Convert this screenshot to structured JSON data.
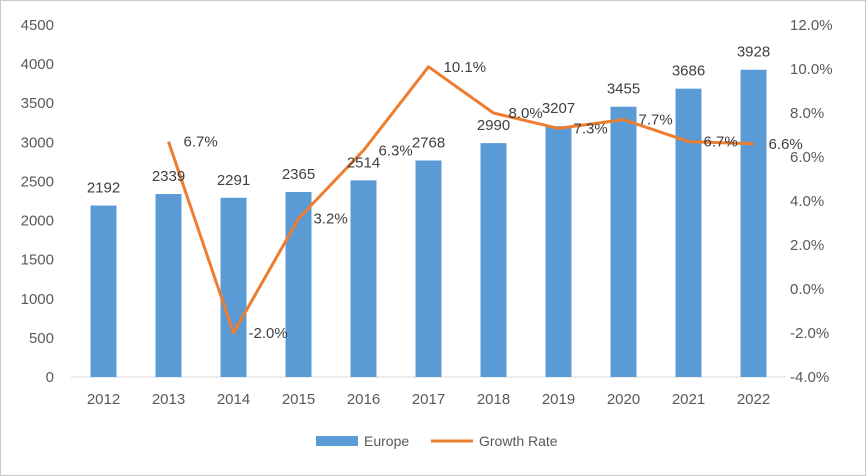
{
  "chart_data": {
    "type": "bar+line",
    "categories": [
      "2012",
      "2013",
      "2014",
      "2015",
      "2016",
      "2017",
      "2018",
      "2019",
      "2020",
      "2021",
      "2022"
    ],
    "series": [
      {
        "name": "Europe",
        "type": "bar",
        "axis": "left",
        "color": "#5b9bd5",
        "values": [
          2192,
          2339,
          2291,
          2365,
          2514,
          2768,
          2990,
          3207,
          3455,
          3686,
          3928
        ],
        "labels": [
          "2192",
          "2339",
          "2291",
          "2365",
          "2514",
          "2768",
          "2990",
          "3207",
          "3455",
          "3686",
          "3928"
        ]
      },
      {
        "name": "Growth Rate",
        "type": "line",
        "axis": "right",
        "color": "#ed7d31",
        "values": [
          null,
          6.7,
          -2.0,
          3.2,
          6.3,
          10.1,
          8.0,
          7.3,
          7.7,
          6.7,
          6.6
        ],
        "labels": [
          null,
          "6.7%",
          "-2.0%",
          "3.2%",
          "6.3%",
          "10.1%",
          "8.0%",
          "7.3%",
          "7.7%",
          "6.7%",
          "6.6%"
        ]
      }
    ],
    "left_axis": {
      "min": 0,
      "max": 4500,
      "ticks": [
        "0",
        "500",
        "1000",
        "1500",
        "2000",
        "2500",
        "3000",
        "3500",
        "4000",
        "4500"
      ]
    },
    "right_axis": {
      "min": -4.0,
      "max": 12.0,
      "ticks": [
        "-4.0%",
        "-2.0%",
        "0.0%",
        "2.0%",
        "4.0%",
        "6.0%",
        "8.0%",
        "10.0%",
        "12.0%"
      ]
    },
    "title": "",
    "xlabel": "",
    "ylabel": "",
    "grid": false,
    "legend": {
      "position": "bottom",
      "entries": [
        "Europe",
        "Growth Rate"
      ]
    }
  }
}
